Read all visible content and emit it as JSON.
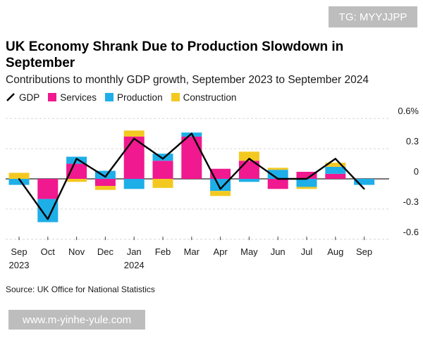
{
  "watermarks": {
    "top": "TG: MYYJJPP",
    "bottom": "www.m-yinhe-yule.com"
  },
  "source": "Source: UK Office for National Statistics",
  "colors": {
    "services": "#f0198f",
    "production": "#1eaee8",
    "construction": "#f3c921",
    "gdp": "#000000"
  },
  "chart_data": {
    "type": "bar",
    "stacked": true,
    "title": "UK Economy Shrank Due to Production Slowdown in September",
    "subtitle": "Contributions to monthly GDP growth, September 2023 to September 2024",
    "legend_position": "top-left",
    "categories": [
      "Sep",
      "Oct",
      "Nov",
      "Dec",
      "Jan",
      "Feb",
      "Mar",
      "Apr",
      "May",
      "Jun",
      "Jul",
      "Aug",
      "Sep"
    ],
    "category_sublabels": [
      "2023",
      "",
      "",
      "",
      "2024",
      "",
      "",
      "",
      "",
      "",
      "",
      "",
      ""
    ],
    "ylim": [
      -0.6,
      0.6
    ],
    "yticks": [
      0.6,
      0.3,
      0,
      -0.3,
      -0.6
    ],
    "ytick_labels": [
      "0.6%",
      "0.3",
      "0",
      "-0.3",
      "-0.6"
    ],
    "y_axis_side": "right",
    "grid": true,
    "series": [
      {
        "name": "GDP",
        "kind": "line",
        "values": [
          0.0,
          -0.4,
          0.2,
          0.02,
          0.4,
          0.2,
          0.45,
          -0.1,
          0.2,
          0.0,
          0.0,
          0.2,
          -0.1
        ]
      },
      {
        "name": "Services",
        "kind": "bar",
        "values": [
          0.0,
          -0.2,
          0.15,
          -0.07,
          0.42,
          0.18,
          0.42,
          0.1,
          0.18,
          -0.1,
          0.07,
          0.05,
          0.0
        ]
      },
      {
        "name": "Production",
        "kind": "bar",
        "values": [
          -0.06,
          -0.23,
          0.07,
          0.08,
          -0.1,
          0.07,
          0.04,
          -0.12,
          -0.03,
          0.09,
          -0.08,
          0.07,
          -0.06
        ]
      },
      {
        "name": "Construction",
        "kind": "bar",
        "values": [
          0.06,
          0.0,
          -0.03,
          -0.04,
          0.06,
          -0.09,
          0.0,
          -0.05,
          0.09,
          0.02,
          -0.02,
          0.04,
          0.0
        ]
      }
    ]
  }
}
